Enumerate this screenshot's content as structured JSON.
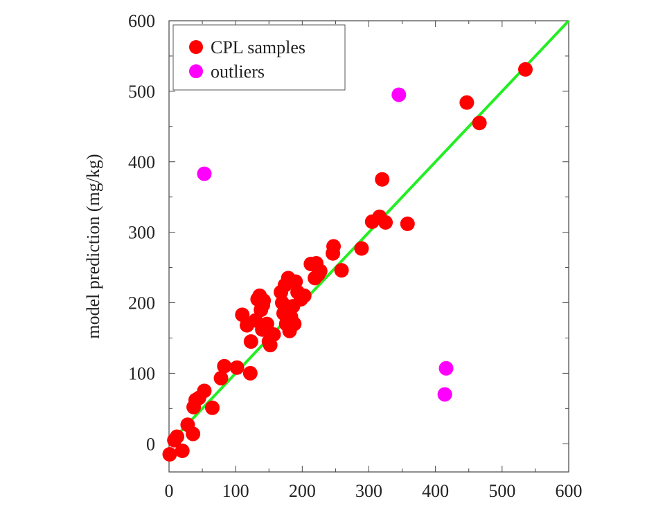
{
  "chart_data": {
    "type": "scatter",
    "title": "",
    "xlabel": "",
    "ylabel": "model prediction (mg/kg)",
    "xlim": [
      0,
      600
    ],
    "ylim": [
      -40,
      600
    ],
    "xticks": [
      0,
      100,
      200,
      300,
      400,
      500,
      600
    ],
    "yticks": [
      0,
      100,
      200,
      300,
      400,
      500,
      600
    ],
    "grid": false,
    "legend_position": "top-left",
    "reference_line": {
      "from": [
        0,
        0
      ],
      "to": [
        600,
        600
      ],
      "color": "#22ee22"
    },
    "series": [
      {
        "name": "CPL samples",
        "color": "#ff0000",
        "points": [
          [
            1,
            -15
          ],
          [
            8,
            5
          ],
          [
            12,
            10
          ],
          [
            20,
            -10
          ],
          [
            28,
            27
          ],
          [
            36,
            14
          ],
          [
            37,
            52
          ],
          [
            40,
            62
          ],
          [
            45,
            65
          ],
          [
            53,
            75
          ],
          [
            65,
            51
          ],
          [
            78,
            93
          ],
          [
            83,
            110
          ],
          [
            102,
            108
          ],
          [
            110,
            183
          ],
          [
            117,
            168
          ],
          [
            122,
            100
          ],
          [
            123,
            145
          ],
          [
            130,
            175
          ],
          [
            133,
            205
          ],
          [
            136,
            210
          ],
          [
            138,
            190
          ],
          [
            140,
            162
          ],
          [
            141,
            197
          ],
          [
            142,
            203
          ],
          [
            147,
            170
          ],
          [
            150,
            145
          ],
          [
            152,
            140
          ],
          [
            157,
            155
          ],
          [
            168,
            215
          ],
          [
            170,
            200
          ],
          [
            172,
            185
          ],
          [
            174,
            225
          ],
          [
            176,
            170
          ],
          [
            179,
            235
          ],
          [
            181,
            160
          ],
          [
            183,
            180
          ],
          [
            186,
            195
          ],
          [
            188,
            170
          ],
          [
            190,
            230
          ],
          [
            193,
            215
          ],
          [
            198,
            205
          ],
          [
            203,
            210
          ],
          [
            213,
            255
          ],
          [
            219,
            235
          ],
          [
            221,
            256
          ],
          [
            224,
            240
          ],
          [
            227,
            245
          ],
          [
            246,
            270
          ],
          [
            247,
            280
          ],
          [
            259,
            246
          ],
          [
            289,
            277
          ],
          [
            305,
            315
          ],
          [
            316,
            322
          ],
          [
            320,
            375
          ],
          [
            325,
            314
          ],
          [
            358,
            312
          ],
          [
            447,
            484
          ],
          [
            466,
            455
          ],
          [
            535,
            531
          ]
        ]
      },
      {
        "name": "outliers",
        "color": "#ff00ff",
        "points": [
          [
            53,
            383
          ],
          [
            345,
            495
          ],
          [
            416,
            107
          ],
          [
            414,
            70
          ]
        ]
      }
    ]
  }
}
